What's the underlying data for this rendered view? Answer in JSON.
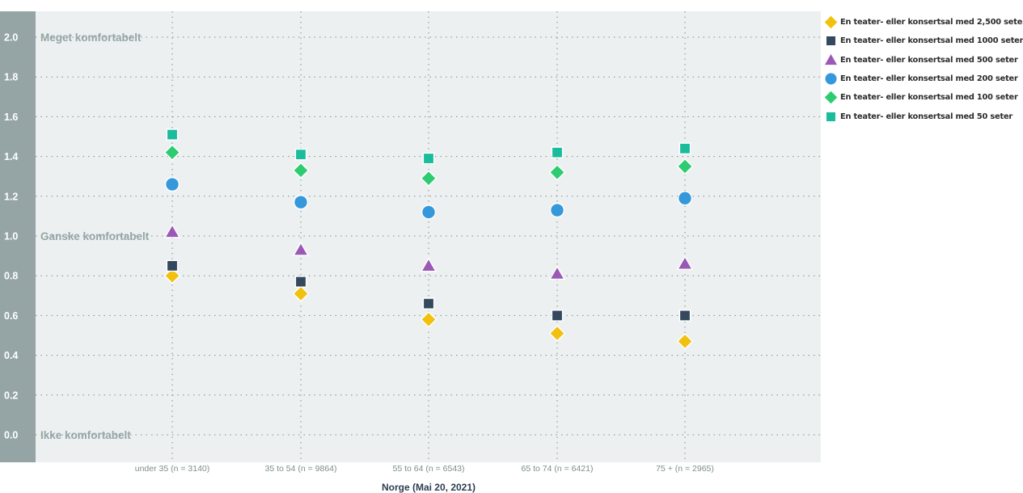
{
  "chart_data": {
    "type": "scatter",
    "xlabel": "Norge (Mai 20, 2021)",
    "ylabel": "",
    "categories": [
      "under 35 (n = 3140)",
      "35 to 54 (n = 9864)",
      "55 to 64 (n = 6543)",
      "65 to 74 (n = 6421)",
      "75 + (n = 2965)"
    ],
    "ylim": [
      -0.15,
      2.15
    ],
    "y_ticks": [
      "0.0",
      "0.2",
      "0.4",
      "0.6",
      "0.8",
      "1.0",
      "1.2",
      "1.4",
      "1.6",
      "1.8",
      "2.0"
    ],
    "annotations": [
      {
        "y": 0,
        "text": "Ikke komfortabelt"
      },
      {
        "y": 1,
        "text": "Ganske komfortabelt"
      },
      {
        "y": 2,
        "text": "Meget komfortabelt"
      }
    ],
    "grid": true,
    "legend_position": "top-right",
    "series": [
      {
        "name": "En teater- eller konsertsal med 2,500 seter",
        "marker": "diamond",
        "color": "#f2c00f",
        "values": [
          0.8,
          0.71,
          0.58,
          0.51,
          0.47
        ]
      },
      {
        "name": "En teater- eller konsertsal med 1000 seter",
        "marker": "square",
        "color": "#34495e",
        "values": [
          0.85,
          0.77,
          0.66,
          0.6,
          0.6
        ]
      },
      {
        "name": "En teater- eller konsertsal med 500 seter",
        "marker": "triangle",
        "color": "#9b59b6",
        "values": [
          1.02,
          0.93,
          0.85,
          0.81,
          0.86
        ]
      },
      {
        "name": "En teater- eller konsertsal med 200 seter",
        "marker": "circle",
        "color": "#3498db",
        "values": [
          1.26,
          1.17,
          1.12,
          1.13,
          1.19
        ]
      },
      {
        "name": "En teater- eller konsertsal med 100 seter",
        "marker": "diamond",
        "color": "#2ecc71",
        "values": [
          1.42,
          1.33,
          1.29,
          1.32,
          1.35
        ]
      },
      {
        "name": "En teater- eller konsertsal med 50 seter",
        "marker": "square",
        "color": "#1abc9c",
        "values": [
          1.51,
          1.41,
          1.39,
          1.42,
          1.44
        ]
      }
    ]
  },
  "colors": {
    "plot_background": "#edf0f1",
    "axis_band": "#95a5a6",
    "grid": "#7f8c8d",
    "tick_text": "#ffffff",
    "annotation_text": "#95a5a6",
    "category_text": "#7f8c8d",
    "xlabel_text": "#2c3e50"
  }
}
